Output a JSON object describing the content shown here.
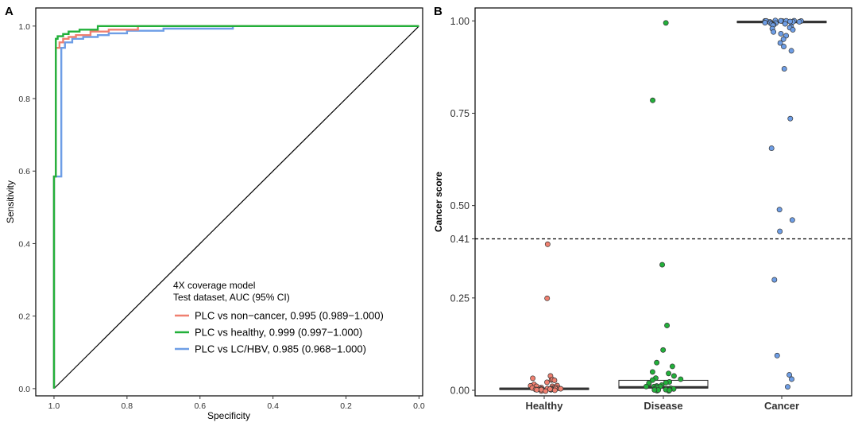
{
  "chart_data": [
    {
      "panel": "A",
      "type": "line",
      "title": "",
      "xlabel": "Specificity",
      "ylabel": "Sensitivity",
      "xlim": [
        1.05,
        -0.01
      ],
      "ylim": [
        -0.02,
        1.05
      ],
      "x_ticks": [
        1.0,
        0.8,
        0.6,
        0.4,
        0.2,
        0.0
      ],
      "x_tick_labels": [
        "1.0",
        "0.8",
        "0.6",
        "0.4",
        "0.2",
        "0.0"
      ],
      "y_ticks": [
        0.0,
        0.2,
        0.4,
        0.6,
        0.8,
        1.0
      ],
      "y_tick_labels": [
        "0.0",
        "0.2",
        "0.4",
        "0.6",
        "0.8",
        "1.0"
      ],
      "legend_title": [
        "4X coverage model",
        "Test dataset, AUC (95% CI)"
      ],
      "legend_position": "bottom-right",
      "reference_line": {
        "x": [
          1.0,
          0.0
        ],
        "y": [
          0.0,
          1.0
        ],
        "color": "#000000"
      },
      "series": [
        {
          "name": "PLC vs non−cancer, 0.995 (0.989−1.000)",
          "color": "#F08070",
          "x": [
            1.0,
            1.0,
            0.995,
            0.995,
            0.985,
            0.985,
            0.975,
            0.975,
            0.96,
            0.96,
            0.94,
            0.94,
            0.9,
            0.9,
            0.85,
            0.85,
            0.77,
            0.77,
            0.0
          ],
          "y": [
            0.0,
            0.585,
            0.585,
            0.94,
            0.94,
            0.955,
            0.955,
            0.965,
            0.965,
            0.97,
            0.97,
            0.975,
            0.975,
            0.985,
            0.985,
            0.99,
            0.99,
            1.0,
            1.0
          ]
        },
        {
          "name": "PLC vs healthy, 0.999 (0.997−1.000)",
          "color": "#22B03A",
          "x": [
            1.0,
            1.0,
            0.995,
            0.995,
            0.99,
            0.99,
            0.975,
            0.975,
            0.96,
            0.96,
            0.93,
            0.93,
            0.88,
            0.88,
            0.0
          ],
          "y": [
            0.0,
            0.585,
            0.585,
            0.965,
            0.965,
            0.972,
            0.972,
            0.978,
            0.978,
            0.985,
            0.985,
            0.99,
            0.99,
            1.0,
            1.0
          ]
        },
        {
          "name": "PLC vs LC/HBV, 0.985 (0.968−1.000)",
          "color": "#6E9EE6",
          "x": [
            1.0,
            1.0,
            0.98,
            0.98,
            0.97,
            0.97,
            0.95,
            0.95,
            0.92,
            0.92,
            0.88,
            0.88,
            0.85,
            0.85,
            0.8,
            0.8,
            0.7,
            0.7,
            0.51,
            0.51,
            0.0
          ],
          "y": [
            0.0,
            0.585,
            0.585,
            0.94,
            0.94,
            0.955,
            0.955,
            0.965,
            0.965,
            0.97,
            0.97,
            0.975,
            0.975,
            0.98,
            0.98,
            0.987,
            0.987,
            0.993,
            0.993,
            1.0,
            1.0
          ]
        }
      ]
    },
    {
      "panel": "B",
      "type": "scatter",
      "title": "",
      "xlabel": "",
      "ylabel": "Cancer score",
      "ylim": [
        -0.015,
        1.035
      ],
      "y_ticks": [
        0.0,
        0.25,
        0.41,
        0.5,
        0.75,
        1.0
      ],
      "y_tick_labels": [
        "0.00",
        "0.25",
        "0.41",
        "0.50",
        "0.75",
        "1.00"
      ],
      "threshold": 0.41,
      "categories": [
        "Healthy",
        "Disease",
        "Cancer"
      ],
      "groups": [
        {
          "name": "Healthy",
          "color": "#F08070",
          "box": {
            "q1": 0.002,
            "median": 0.004,
            "q3": 0.006
          },
          "points": [
            0.395,
            0.25,
            0.04,
            0.035,
            0.03,
            0.028,
            0.025,
            0.02,
            0.018,
            0.015,
            0.012,
            0.01,
            0.01,
            0.008,
            0.007,
            0.006,
            0.005,
            0.005,
            0.004,
            0.004,
            0.003,
            0.003,
            0.002,
            0.002,
            0.002,
            0.001,
            0.001,
            0.001,
            0.001,
            0.0,
            0.0,
            0.0,
            0.0,
            0.0,
            0.0,
            0.0
          ]
        },
        {
          "name": "Disease",
          "color": "#22B03A",
          "box": {
            "q1": 0.006,
            "median": 0.008,
            "q3": 0.027
          },
          "points": [
            0.995,
            0.785,
            0.34,
            0.175,
            0.11,
            0.075,
            0.065,
            0.05,
            0.045,
            0.04,
            0.035,
            0.03,
            0.028,
            0.025,
            0.022,
            0.02,
            0.018,
            0.016,
            0.014,
            0.012,
            0.01,
            0.009,
            0.008,
            0.007,
            0.006,
            0.005,
            0.004,
            0.003,
            0.002,
            0.001,
            0.0,
            0.0,
            0.0,
            0.0,
            0.0,
            0.0
          ]
        },
        {
          "name": "Cancer",
          "color": "#6E9EE6",
          "box": {
            "q1": 0.995,
            "median": 0.997,
            "q3": 0.999
          },
          "points": [
            1.0,
            1.0,
            1.0,
            1.0,
            1.0,
            1.0,
            1.0,
            1.0,
            0.999,
            0.999,
            0.998,
            0.998,
            0.997,
            0.997,
            0.996,
            0.995,
            0.994,
            0.993,
            0.992,
            0.99,
            0.988,
            0.985,
            0.982,
            0.978,
            0.975,
            0.97,
            0.965,
            0.96,
            0.95,
            0.94,
            0.93,
            0.92,
            0.87,
            0.735,
            0.655,
            0.49,
            0.46,
            0.43,
            0.3,
            0.095,
            0.045,
            0.03,
            0.012
          ]
        }
      ]
    }
  ]
}
